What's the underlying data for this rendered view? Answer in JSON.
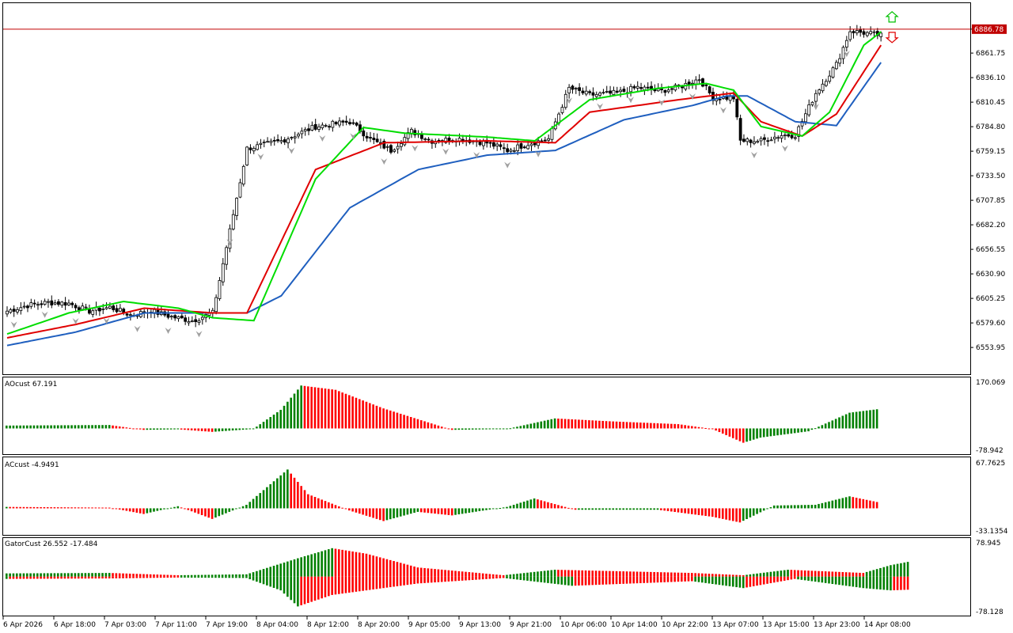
{
  "chart_data": [
    {
      "type": "candlestick",
      "panel": "main",
      "ylim": [
        6528.4,
        6912.3
      ],
      "y_ticks": [
        "6886.78",
        "6861.75",
        "6836.10",
        "6810.45",
        "6784.80",
        "6759.15",
        "6733.50",
        "6707.85",
        "6682.20",
        "6656.55",
        "6630.90",
        "6605.25",
        "6579.60",
        "6553.95"
      ],
      "current_price_label": "6886.78",
      "current_price": 6886.78,
      "x_ticks": [
        "6 Apr 2026",
        "6 Apr 18:00",
        "7 Apr 03:00",
        "7 Apr 11:00",
        "7 Apr 19:00",
        "8 Apr 04:00",
        "8 Apr 12:00",
        "8 Apr 20:00",
        "9 Apr 05:00",
        "9 Apr 13:00",
        "9 Apr 21:00",
        "10 Apr 06:00",
        "10 Apr 14:00",
        "10 Apr 22:00",
        "13 Apr 07:00",
        "13 Apr 15:00",
        "13 Apr 23:00",
        "14 Apr 08:00"
      ],
      "colors": {
        "candle": "#000000",
        "jaw": "#1f5fbf",
        "teeth": "#e00000",
        "lips": "#00dd00",
        "fractal": "#a0a0a0",
        "price_line": "#c00000",
        "price_tag": "#c00000",
        "arrow_up": "#00c000",
        "arrow_down": "#e00000"
      },
      "close_keypoints": [
        [
          0,
          6592
        ],
        [
          6,
          6598
        ],
        [
          12,
          6601
        ],
        [
          18,
          6600
        ],
        [
          24,
          6592
        ],
        [
          30,
          6596
        ],
        [
          36,
          6588
        ],
        [
          42,
          6592
        ],
        [
          48,
          6586
        ],
        [
          54,
          6582
        ],
        [
          60,
          6590
        ],
        [
          70,
          6762
        ],
        [
          80,
          6770
        ],
        [
          90,
          6785
        ],
        [
          100,
          6790
        ],
        [
          106,
          6772
        ],
        [
          112,
          6760
        ],
        [
          118,
          6780
        ],
        [
          124,
          6770
        ],
        [
          132,
          6772
        ],
        [
          140,
          6768
        ],
        [
          146,
          6760
        ],
        [
          152,
          6767
        ],
        [
          158,
          6772
        ],
        [
          164,
          6825
        ],
        [
          170,
          6818
        ],
        [
          178,
          6820
        ],
        [
          184,
          6826
        ],
        [
          190,
          6822
        ],
        [
          196,
          6826
        ],
        [
          202,
          6835
        ],
        [
          206,
          6815
        ],
        [
          212,
          6815
        ],
        [
          214,
          6770
        ],
        [
          220,
          6770
        ],
        [
          226,
          6776
        ],
        [
          230,
          6776
        ],
        [
          236,
          6820
        ],
        [
          242,
          6850
        ],
        [
          246,
          6885
        ],
        [
          252,
          6882
        ],
        [
          255,
          6880
        ]
      ],
      "jaw_keypoints": [
        [
          0,
          6556
        ],
        [
          20,
          6570
        ],
        [
          40,
          6590
        ],
        [
          70,
          6590
        ],
        [
          80,
          6608
        ],
        [
          100,
          6700
        ],
        [
          120,
          6740
        ],
        [
          140,
          6755
        ],
        [
          160,
          6760
        ],
        [
          180,
          6792
        ],
        [
          200,
          6807
        ],
        [
          210,
          6817
        ],
        [
          216,
          6817
        ],
        [
          230,
          6790
        ],
        [
          242,
          6786
        ],
        [
          255,
          6852
        ]
      ],
      "teeth_keypoints": [
        [
          0,
          6564
        ],
        [
          20,
          6578
        ],
        [
          40,
          6595
        ],
        [
          60,
          6590
        ],
        [
          70,
          6590
        ],
        [
          90,
          6740
        ],
        [
          110,
          6768
        ],
        [
          140,
          6770
        ],
        [
          160,
          6768
        ],
        [
          170,
          6800
        ],
        [
          196,
          6813
        ],
        [
          212,
          6820
        ],
        [
          220,
          6790
        ],
        [
          232,
          6775
        ],
        [
          242,
          6798
        ],
        [
          255,
          6870
        ]
      ],
      "lips_keypoints": [
        [
          0,
          6568
        ],
        [
          18,
          6590
        ],
        [
          34,
          6602
        ],
        [
          50,
          6595
        ],
        [
          60,
          6585
        ],
        [
          72,
          6582
        ],
        [
          90,
          6730
        ],
        [
          104,
          6784
        ],
        [
          116,
          6778
        ],
        [
          140,
          6774
        ],
        [
          154,
          6770
        ],
        [
          170,
          6813
        ],
        [
          190,
          6825
        ],
        [
          204,
          6830
        ],
        [
          212,
          6823
        ],
        [
          220,
          6785
        ],
        [
          232,
          6775
        ],
        [
          240,
          6800
        ],
        [
          250,
          6870
        ],
        [
          255,
          6884
        ]
      ]
    },
    {
      "type": "histogram",
      "panel": "AOcust",
      "title": "AOcust 67.191",
      "ylim": [
        -78.942,
        170.069
      ],
      "y_ticks": [
        "170.069",
        "-78.942"
      ],
      "colors": {
        "up": "#008000",
        "down": "#ff0000"
      },
      "keypoints": [
        [
          0,
          10
        ],
        [
          30,
          12
        ],
        [
          40,
          -5
        ],
        [
          50,
          -3
        ],
        [
          60,
          -12
        ],
        [
          72,
          -2
        ],
        [
          80,
          65
        ],
        [
          86,
          150
        ],
        [
          96,
          135
        ],
        [
          110,
          70
        ],
        [
          130,
          -5
        ],
        [
          146,
          -2
        ],
        [
          160,
          35
        ],
        [
          176,
          25
        ],
        [
          196,
          15
        ],
        [
          206,
          -2
        ],
        [
          215,
          -50
        ],
        [
          220,
          -32
        ],
        [
          234,
          -10
        ],
        [
          246,
          55
        ],
        [
          256,
          70
        ],
        [
          268,
          60
        ]
      ]
    },
    {
      "type": "histogram",
      "panel": "ACcust",
      "title": "ACcust -4.9491",
      "ylim": [
        -33.1354,
        67.7625
      ],
      "y_ticks": [
        "67.7625",
        "-33.1354"
      ],
      "colors": {
        "up": "#008000",
        "down": "#ff0000"
      },
      "keypoints": [
        [
          0,
          2
        ],
        [
          30,
          1
        ],
        [
          40,
          -8
        ],
        [
          50,
          3
        ],
        [
          60,
          -15
        ],
        [
          70,
          5
        ],
        [
          82,
          55
        ],
        [
          88,
          20
        ],
        [
          100,
          -3
        ],
        [
          110,
          -18
        ],
        [
          120,
          -5
        ],
        [
          130,
          -10
        ],
        [
          146,
          2
        ],
        [
          154,
          14
        ],
        [
          166,
          -2
        ],
        [
          190,
          -2
        ],
        [
          206,
          -12
        ],
        [
          214,
          -20
        ],
        [
          224,
          4
        ],
        [
          236,
          5
        ],
        [
          246,
          17
        ],
        [
          258,
          5
        ],
        [
          268,
          -5
        ]
      ]
    },
    {
      "type": "histogram",
      "panel": "GatorCust",
      "title": "GatorCust 26.552 -17.484",
      "ylim": [
        -78.128,
        78.945
      ],
      "y_ticks": [
        "78.945",
        "-78.128"
      ],
      "colors": {
        "up": "#008000",
        "down": "#ff0000"
      },
      "upper_keypoints": [
        [
          0,
          7
        ],
        [
          30,
          8
        ],
        [
          50,
          3
        ],
        [
          70,
          5
        ],
        [
          85,
          40
        ],
        [
          95,
          62
        ],
        [
          105,
          50
        ],
        [
          120,
          20
        ],
        [
          145,
          3
        ],
        [
          160,
          15
        ],
        [
          200,
          8
        ],
        [
          215,
          3
        ],
        [
          228,
          15
        ],
        [
          250,
          8
        ],
        [
          258,
          25
        ],
        [
          265,
          35
        ],
        [
          275,
          26
        ]
      ],
      "lower_keypoints": [
        [
          0,
          -5
        ],
        [
          30,
          -4
        ],
        [
          50,
          -2
        ],
        [
          70,
          -3
        ],
        [
          80,
          -30
        ],
        [
          85,
          -65
        ],
        [
          95,
          -40
        ],
        [
          120,
          -15
        ],
        [
          145,
          -3
        ],
        [
          165,
          -20
        ],
        [
          200,
          -10
        ],
        [
          215,
          -25
        ],
        [
          230,
          -5
        ],
        [
          250,
          -25
        ],
        [
          258,
          -30
        ],
        [
          265,
          -28
        ],
        [
          275,
          -17
        ]
      ]
    }
  ]
}
